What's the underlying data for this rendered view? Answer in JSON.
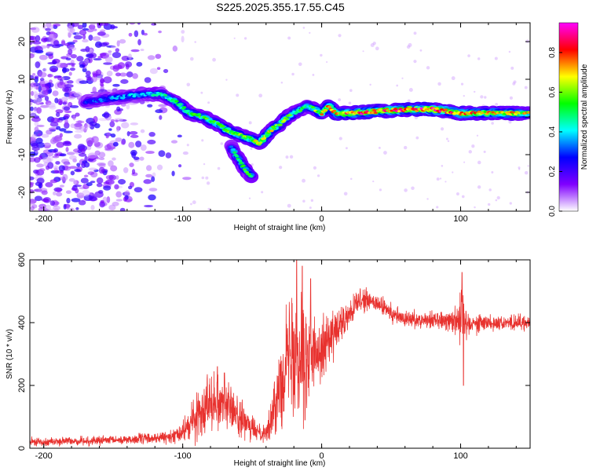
{
  "title": "S225.2025.355.17.55.C45",
  "colors": {
    "trace": "#e8322f",
    "axis": "#000000",
    "background": "#ffffff"
  },
  "chart_data": [
    {
      "type": "heatmap",
      "name": "spectrogram",
      "xlabel": "Height of straight line (km)",
      "ylabel": "Frequency (Hz)",
      "xlim": [
        -210,
        150
      ],
      "ylim": [
        -25,
        25
      ],
      "xticks": [
        -200,
        -100,
        0,
        100
      ],
      "xtick_labels": [
        "-200",
        "-100",
        "0",
        "100"
      ],
      "yticks": [
        -20,
        -10,
        0,
        10,
        20
      ],
      "ytick_labels": [
        "-20",
        "-10",
        "0",
        "10",
        "20"
      ],
      "colorbar": {
        "label": "Normalized spectral amplitude",
        "range": [
          0,
          0.95
        ],
        "ticks": [
          0,
          0.2,
          0.4,
          0.6,
          0.8
        ],
        "tick_labels": [
          "0.0",
          "0.2",
          "0.4",
          "0.6",
          "0.8"
        ],
        "colormap": [
          "#ffffff",
          "#8000ff",
          "#0000ff",
          "#00ffff",
          "#00ff00",
          "#ffff00",
          "#ff0000",
          "#ff00ff"
        ]
      },
      "ridge": {
        "x": [
          -170,
          -150,
          -130,
          -115,
          -105,
          -95,
          -85,
          -75,
          -65,
          -58,
          -50,
          -45,
          -40,
          -35,
          -30,
          -25,
          -20,
          -15,
          -10,
          -5,
          0,
          5,
          10,
          20,
          40,
          60,
          80,
          100,
          120,
          150
        ],
        "y": [
          4,
          5,
          6,
          6,
          4,
          1,
          0,
          -2,
          -4,
          -5,
          -6,
          -7,
          -5,
          -3,
          -2,
          0,
          1,
          2,
          3,
          2,
          1,
          3,
          1,
          1,
          1.5,
          2,
          2,
          1,
          1,
          1
        ],
        "amplitude": [
          0.3,
          0.35,
          0.4,
          0.45,
          0.5,
          0.55,
          0.55,
          0.6,
          0.6,
          0.6,
          0.65,
          0.7,
          0.7,
          0.65,
          0.6,
          0.6,
          0.55,
          0.55,
          0.5,
          0.6,
          0.7,
          0.75,
          0.8,
          0.85,
          0.85,
          0.9,
          0.9,
          0.8,
          0.75,
          0.7
        ]
      },
      "branch": {
        "x": [
          -65,
          -60,
          -55,
          -50
        ],
        "y": [
          -8,
          -11,
          -14,
          -16
        ],
        "amplitude": [
          0.45,
          0.5,
          0.55,
          0.5
        ]
      },
      "noise_region_x": [
        -210,
        -100
      ]
    },
    {
      "type": "line",
      "name": "snr",
      "xlabel": "Height of straight line (km)",
      "ylabel": "SNR (10 * v/v)",
      "xlim": [
        -210,
        150
      ],
      "ylim": [
        0,
        600
      ],
      "xticks": [
        -200,
        -100,
        0,
        100
      ],
      "xtick_labels": [
        "-200",
        "-100",
        "0",
        "100"
      ],
      "yticks": [
        0,
        200,
        400,
        600
      ],
      "ytick_labels": [
        "0",
        "200",
        "400",
        "600"
      ],
      "envelope": {
        "x": [
          -210,
          -150,
          -110,
          -100,
          -90,
          -80,
          -70,
          -60,
          -50,
          -40,
          -35,
          -30,
          -25,
          -20,
          -15,
          -10,
          -5,
          0,
          10,
          20,
          25,
          30,
          40,
          50,
          60,
          80,
          95,
          100,
          105,
          120,
          150
        ],
        "y": [
          20,
          25,
          35,
          50,
          100,
          160,
          150,
          100,
          60,
          50,
          100,
          220,
          280,
          320,
          330,
          280,
          300,
          330,
          370,
          420,
          460,
          470,
          460,
          430,
          410,
          410,
          410,
          420,
          400,
          400,
          400
        ],
        "noise": [
          10,
          12,
          15,
          25,
          60,
          80,
          70,
          50,
          30,
          25,
          60,
          110,
          150,
          170,
          180,
          140,
          100,
          80,
          60,
          40,
          30,
          30,
          25,
          25,
          22,
          20,
          30,
          80,
          30,
          20,
          20
        ]
      },
      "spikes": [
        {
          "x": -18,
          "y": 600
        },
        {
          "x": -14,
          "y": 580
        },
        {
          "x": -12,
          "y": 90
        },
        {
          "x": -8,
          "y": 540
        },
        {
          "x": 101,
          "y": 560
        },
        {
          "x": 102,
          "y": 200
        },
        {
          "x": -75,
          "y": 260
        },
        {
          "x": -70,
          "y": 240
        }
      ],
      "series_points": 2400
    }
  ]
}
